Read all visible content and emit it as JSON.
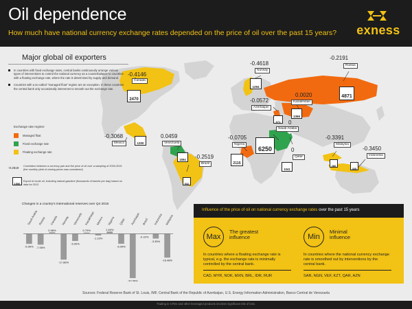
{
  "header": {
    "title": "Oil dependence",
    "subtitle": "How much have national currency exchange rates depended on the price of oil over the past 15 years?",
    "brand": "exness",
    "brand_color": "#f2c214"
  },
  "map_section": {
    "title": "Major global oil exporters",
    "notes": [
      "In countries with fixed exchange rates, central banks continuously arrange various types of interventions to control the national currency as a counterbalance to countries with a floating exchange rate, where the rate is determined by supply and demand.",
      "Countries with a so-called \"managed float\" regime are an exception. In these countries the central bank only occasionally intervenes to smooth out the exchange rate."
    ],
    "legend_title": "Exchange rate regime:",
    "legend": [
      {
        "label": "Managed float",
        "color": "#f26a10"
      },
      {
        "label": "Fixed exchange rate",
        "color": "#2fa34e"
      },
      {
        "label": "Floating exchange rate",
        "color": "#f2c214"
      }
    ],
    "legend_value_sample": "-0.2519",
    "legend_value_text": "Correlation between a currency pair and the price of oil over a sampling of 2000-2015 (the monthly yield of closing prices was considered)",
    "legend_pump_sample": "1556",
    "legend_pump_text": "Export of crude oil, including natural gasoline (thousands of barrels per day) based on data for 2012",
    "countries": [
      {
        "name": "Canada",
        "value": "-0.4146",
        "export": "2470"
      },
      {
        "name": "Mexico",
        "value": "-0.3068",
        "export": "1200"
      },
      {
        "name": "Venezuela",
        "value": "0.0459",
        "export": "1594"
      },
      {
        "name": "Brazil",
        "value": "-0.2519",
        "export": "532"
      },
      {
        "name": "Norway",
        "value": "-0.4618",
        "export": "1294"
      },
      {
        "name": "Azerbaijan",
        "value": "-0.0572",
        "export": "671"
      },
      {
        "name": "Russia",
        "value": "-0.2191",
        "export": "4871"
      },
      {
        "name": "Kazakhstan",
        "value": "0.0020",
        "export": "1366"
      },
      {
        "name": "Nigeria",
        "value": "-0.0705",
        "export": "2115"
      },
      {
        "name": "Saudi Arabia",
        "value": "0",
        "export": "6250"
      },
      {
        "name": "Qatar",
        "value": "0",
        "export": "1041"
      },
      {
        "name": "Malaysia",
        "value": "-0.3391",
        "export": "286"
      },
      {
        "name": "Indonesia",
        "value": "-0.3450",
        "export": "428"
      }
    ]
  },
  "chart_data": {
    "type": "bar",
    "title": "Changes in a country's international reserves over Q4 2015",
    "categories": [
      "Saudi Arabia",
      "Russia",
      "Canada",
      "Norway",
      "Venezuela",
      "Kazakhstan",
      "Mexico",
      "Nigeria",
      "Qatar",
      "Azerbaijan",
      "Brazil",
      "Indonesia",
      "Malaysia"
    ],
    "values": [
      -6.99,
      -7.55,
      0.98,
      -17.86,
      -5.0,
      0.79,
      -1.19,
      1.46,
      -6.95,
      -30.58,
      -0.32,
      -3.35,
      -16.48
    ],
    "labels": [
      "-6.99%",
      "-7.55%",
      "0.98%",
      "-17.86%",
      "-5.00%",
      "0.79%",
      "-1.19%",
      "1.46%",
      "-6.95%",
      "-30.58%",
      "-0.32%",
      "-3.35%",
      "-16.48%"
    ],
    "ylim": [
      -32,
      3
    ],
    "bar_color": "#9a9a9a"
  },
  "influence": {
    "title_prefix": "Influence of the price of oil on national currency exchange rates",
    "title_suffix": " over the past 15 years",
    "max": {
      "badge": "Max",
      "label_line1": "The greatest",
      "label_line2": "influence",
      "desc": "In countries where a floating exchange rate is typical, e.g. the exchange rate is minimally controlled by the central bank.",
      "codes": "CAD, MYR, NOK, MXN, BRL, IDR, RUR"
    },
    "min": {
      "badge": "Min",
      "label_line1": "Minimal",
      "label_line2": "influence",
      "desc": "In countries where the national currency exchange rate is smoothed out by interventions by the central bank.",
      "codes": "SAR, NGN, VEF, KZT, QAR, AZN"
    }
  },
  "sources": "Sources: Federal Reserve Bank of St. Louis, IMF, Central Bank of the Republic of Azerbaijan, U.S. Energy Information Administration, Banco Central de Venezuela",
  "disclaimer": "Trading in CFDs and other leveraged products involves significant risk of loss."
}
